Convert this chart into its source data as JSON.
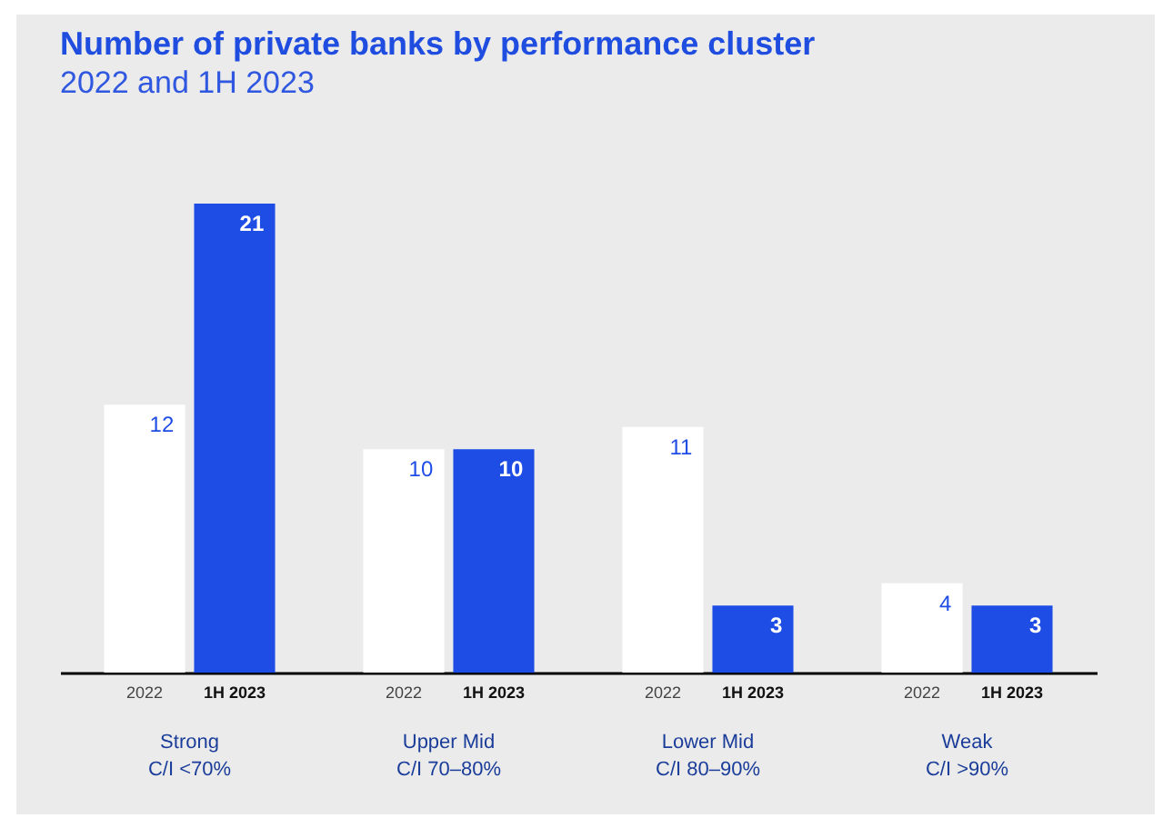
{
  "chart_data": {
    "type": "bar",
    "title": "Number of private banks by performance cluster",
    "subtitle": "2022 and 1H 2023",
    "categories": [
      "Strong\nC/I <70%",
      "Upper Mid\nC/I 70–80%",
      "Lower Mid\nC/I 80–90%",
      "Weak\nC/I >90%"
    ],
    "series": [
      {
        "name": "2022",
        "color": "#ffffff",
        "values": [
          12,
          10,
          11,
          4
        ]
      },
      {
        "name": "1H 2023",
        "color": "#1e4de6",
        "values": [
          21,
          10,
          3,
          3
        ]
      }
    ],
    "data_labels": true
  }
}
